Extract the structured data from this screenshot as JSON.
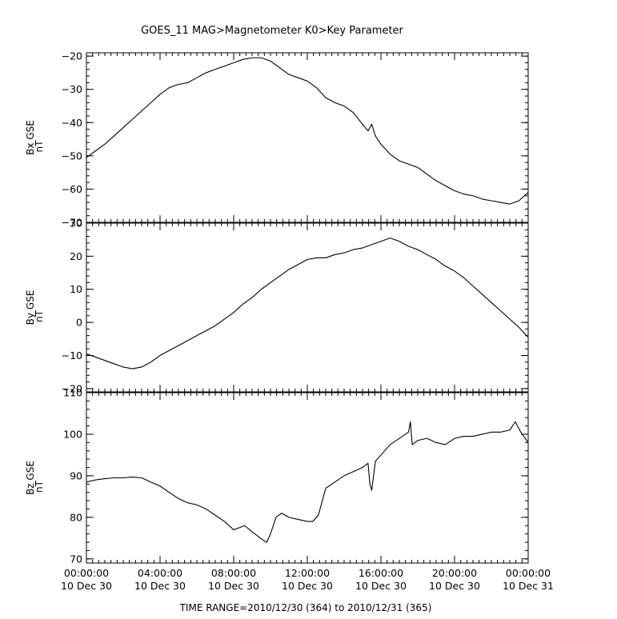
{
  "title": "GOES_11   MAG>Magnetometer  K0>Key Parameter",
  "footer": "TIME RANGE=2010/12/30 (364) to 2010/12/31 (365)",
  "chart_data": {
    "type": "line",
    "x_ticks": [
      {
        "time": "00:00:00",
        "date": "10 Dec 30",
        "hour": 0
      },
      {
        "time": "04:00:00",
        "date": "10 Dec 30",
        "hour": 4
      },
      {
        "time": "08:00:00",
        "date": "10 Dec 30",
        "hour": 8
      },
      {
        "time": "12:00:00",
        "date": "10 Dec 30",
        "hour": 12
      },
      {
        "time": "16:00:00",
        "date": "10 Dec 30",
        "hour": 16
      },
      {
        "time": "20:00:00",
        "date": "10 Dec 30",
        "hour": 20
      },
      {
        "time": "00:00:00",
        "date": "10 Dec 31",
        "hour": 24
      }
    ],
    "panels": [
      {
        "ylabel": "Bx GSE",
        "unit": "nT",
        "ylim": [
          -70,
          -19
        ],
        "yticks": [
          -70,
          -60,
          -50,
          -40,
          -30,
          -20
        ],
        "x": [
          0,
          0.5,
          1,
          1.5,
          2,
          2.5,
          3,
          3.5,
          4,
          4.5,
          5,
          5.5,
          6,
          6.5,
          7,
          7.5,
          8,
          8.5,
          9,
          9.5,
          10,
          10.5,
          11,
          11.5,
          12,
          12.5,
          13,
          13.5,
          14,
          14.5,
          15,
          15.3,
          15.5,
          15.7,
          16,
          16.5,
          17,
          17.5,
          18,
          18.5,
          19,
          19.5,
          20,
          20.5,
          21,
          21.5,
          22,
          22.5,
          23,
          23.5,
          24
        ],
        "y": [
          -50.5,
          -48.5,
          -46.5,
          -44,
          -41.5,
          -39,
          -36.5,
          -34,
          -31.5,
          -29.5,
          -28.5,
          -28,
          -26.5,
          -25,
          -24,
          -23,
          -22,
          -21,
          -20.5,
          -20.5,
          -21.5,
          -23.5,
          -25.5,
          -26.5,
          -27.5,
          -29.5,
          -32.5,
          -34,
          -35,
          -37,
          -40.5,
          -42.5,
          -40.5,
          -44,
          -46.5,
          -49.5,
          -51.5,
          -52.5,
          -53.5,
          -55.5,
          -57.5,
          -59,
          -60.5,
          -61.5,
          -62,
          -63,
          -63.5,
          -64,
          -64.5,
          -63.5,
          -61
        ]
      },
      {
        "ylabel": "By GSE",
        "unit": "nT",
        "ylim": [
          -21,
          30
        ],
        "yticks": [
          -20,
          -10,
          0,
          10,
          20,
          30
        ],
        "x": [
          0,
          0.5,
          1,
          1.5,
          2,
          2.5,
          3,
          3.5,
          4,
          4.5,
          5,
          5.5,
          6,
          6.5,
          7,
          7.5,
          8,
          8.5,
          9,
          9.5,
          10,
          10.5,
          11,
          11.5,
          12,
          12.5,
          13,
          13.5,
          14,
          14.5,
          15,
          15.5,
          16,
          16.5,
          17,
          17.5,
          18,
          18.5,
          19,
          19.5,
          20,
          20.5,
          21,
          21.5,
          22,
          22.5,
          23,
          23.5,
          24
        ],
        "y": [
          -9.5,
          -10.5,
          -11.5,
          -12.5,
          -13.5,
          -14,
          -13.5,
          -12,
          -10,
          -8.5,
          -7,
          -5.5,
          -4,
          -2.5,
          -1,
          1,
          3,
          5.5,
          7.5,
          10,
          12,
          14,
          16,
          17.5,
          19,
          19.5,
          19.5,
          20.5,
          21,
          22,
          22.5,
          23.5,
          24.5,
          25.5,
          24.5,
          23,
          22,
          20.5,
          19,
          17,
          15.5,
          13.5,
          11,
          8.5,
          6,
          3.5,
          1,
          -1.5,
          -4.5
        ]
      },
      {
        "ylabel": "Bz GSE",
        "unit": "nT",
        "ylim": [
          69,
          110
        ],
        "yticks": [
          70,
          80,
          90,
          100,
          110
        ],
        "x": [
          0,
          0.5,
          1,
          1.5,
          2,
          2.5,
          3,
          3.5,
          4,
          4.5,
          5,
          5.5,
          6,
          6.5,
          7,
          7.5,
          8,
          8.3,
          8.6,
          9,
          9.3,
          9.6,
          9.8,
          10,
          10.3,
          10.6,
          11,
          11.5,
          12,
          12.3,
          12.6,
          13,
          13.5,
          14,
          14.5,
          15,
          15.3,
          15.4,
          15.5,
          15.7,
          16,
          16.5,
          17,
          17.5,
          17.6,
          17.7,
          18,
          18.5,
          19,
          19.5,
          20,
          20.5,
          21,
          21.5,
          22,
          22.5,
          23,
          23.3,
          23.6,
          24
        ],
        "y": [
          88.5,
          89,
          89.3,
          89.5,
          89.5,
          89.7,
          89.5,
          88.5,
          87.5,
          86,
          84.5,
          83.5,
          83,
          82,
          80.5,
          79,
          77,
          77.5,
          78,
          76.5,
          75.5,
          74.5,
          74,
          76,
          80,
          81,
          80,
          79.5,
          79,
          79,
          80.5,
          87,
          88.5,
          90,
          91,
          92,
          93,
          88,
          86.5,
          93.5,
          95,
          97.5,
          99,
          100.5,
          103,
          97.5,
          98.5,
          99,
          98,
          97.5,
          99,
          99.5,
          99.5,
          100,
          100.5,
          100.5,
          101,
          103,
          100.5,
          98
        ]
      }
    ]
  }
}
